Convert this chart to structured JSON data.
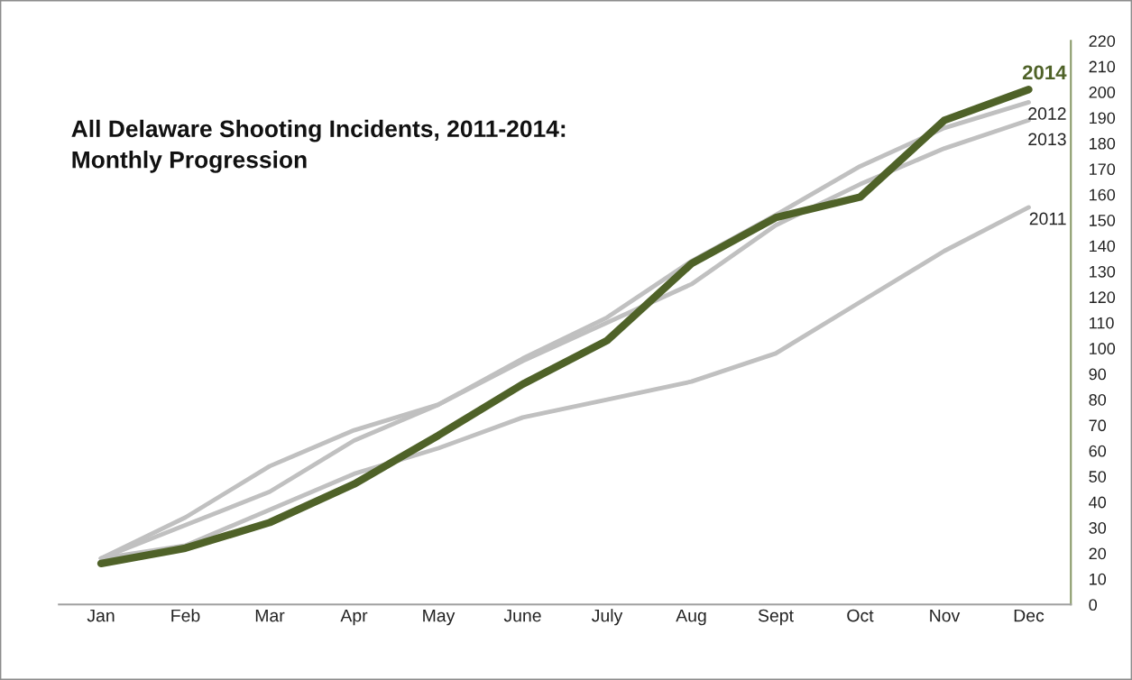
{
  "chart_data": {
    "type": "line",
    "title": "All Delaware Shooting Incidents, 2011-2014:\nMonthly Progression",
    "categories": [
      "Jan",
      "Feb",
      "Mar",
      "Apr",
      "May",
      "June",
      "July",
      "Aug",
      "Sept",
      "Oct",
      "Nov",
      "Dec"
    ],
    "series": [
      {
        "name": "2011",
        "color": "#c0c0c0",
        "values": [
          18,
          23,
          37,
          51,
          61,
          73,
          80,
          87,
          98,
          118,
          138,
          155
        ]
      },
      {
        "name": "2012",
        "color": "#c0c0c0",
        "values": [
          18,
          34,
          54,
          68,
          78,
          96,
          112,
          134,
          152,
          171,
          186,
          196
        ]
      },
      {
        "name": "2013",
        "color": "#c0c0c0",
        "values": [
          18,
          31,
          44,
          64,
          78,
          95,
          110,
          125,
          148,
          164,
          178,
          189
        ]
      },
      {
        "name": "2014",
        "color": "#4f6228",
        "values": [
          16,
          22,
          32,
          47,
          66,
          86,
          103,
          133,
          151,
          159,
          189,
          201
        ]
      }
    ],
    "ylim": [
      0,
      220
    ],
    "yticks": [
      0,
      10,
      20,
      30,
      40,
      50,
      60,
      70,
      80,
      90,
      100,
      110,
      120,
      130,
      140,
      150,
      160,
      170,
      180,
      190,
      200,
      210,
      220
    ],
    "grid": false,
    "legend": false,
    "marker": "none",
    "line_style": "solid"
  }
}
